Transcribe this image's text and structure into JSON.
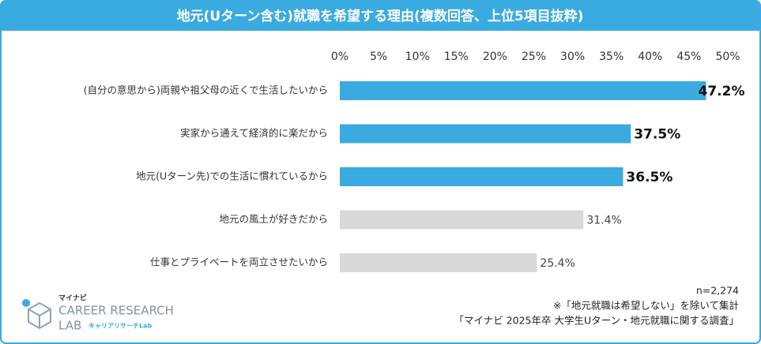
{
  "chart_data": {
    "type": "bar",
    "orientation": "horizontal",
    "title": "地元(Uターン含む)就職を希望する理由(複数回答、上位5項目抜粋)",
    "categories": [
      "(自分の意思から)両親や祖父母の近くで生活したいから",
      "実家から通えて経済的に楽だから",
      "地元(Uターン先)での生活に慣れているから",
      "地元の風土が好きだから",
      "仕事とプライベートを両立させたいから"
    ],
    "values": [
      47.2,
      37.5,
      36.5,
      31.4,
      25.4
    ],
    "value_labels": [
      "47.2%",
      "37.5%",
      "36.5%",
      "31.4%",
      "25.4%"
    ],
    "colors": [
      "#3aabe0",
      "#3aabe0",
      "#3aabe0",
      "#d9d9d9",
      "#d9d9d9"
    ],
    "xlim": [
      0,
      50
    ],
    "xticks": [
      {
        "value": 0,
        "label": "0%"
      },
      {
        "value": 5,
        "label": "5%"
      },
      {
        "value": 10,
        "label": "10%"
      },
      {
        "value": 15,
        "label": "15%"
      },
      {
        "value": 20,
        "label": "20%"
      },
      {
        "value": 25,
        "label": "25%"
      },
      {
        "value": 30,
        "label": "30%"
      },
      {
        "value": 35,
        "label": "35%"
      },
      {
        "value": 40,
        "label": "40%"
      },
      {
        "value": 45,
        "label": "45%"
      },
      {
        "value": 50,
        "label": "50%"
      }
    ],
    "grid": false,
    "notes": [
      "n=2,274",
      "※「地元就職は希望しない」を除いて集計",
      "「マイナビ 2025年卒 大学生Uターン・地元就職に関する調査」"
    ],
    "logo": {
      "brand": "マイナビ",
      "line1": "CAREER RESEARCH",
      "line2": "LAB",
      "sub": "キャリアリサーチLab"
    }
  }
}
